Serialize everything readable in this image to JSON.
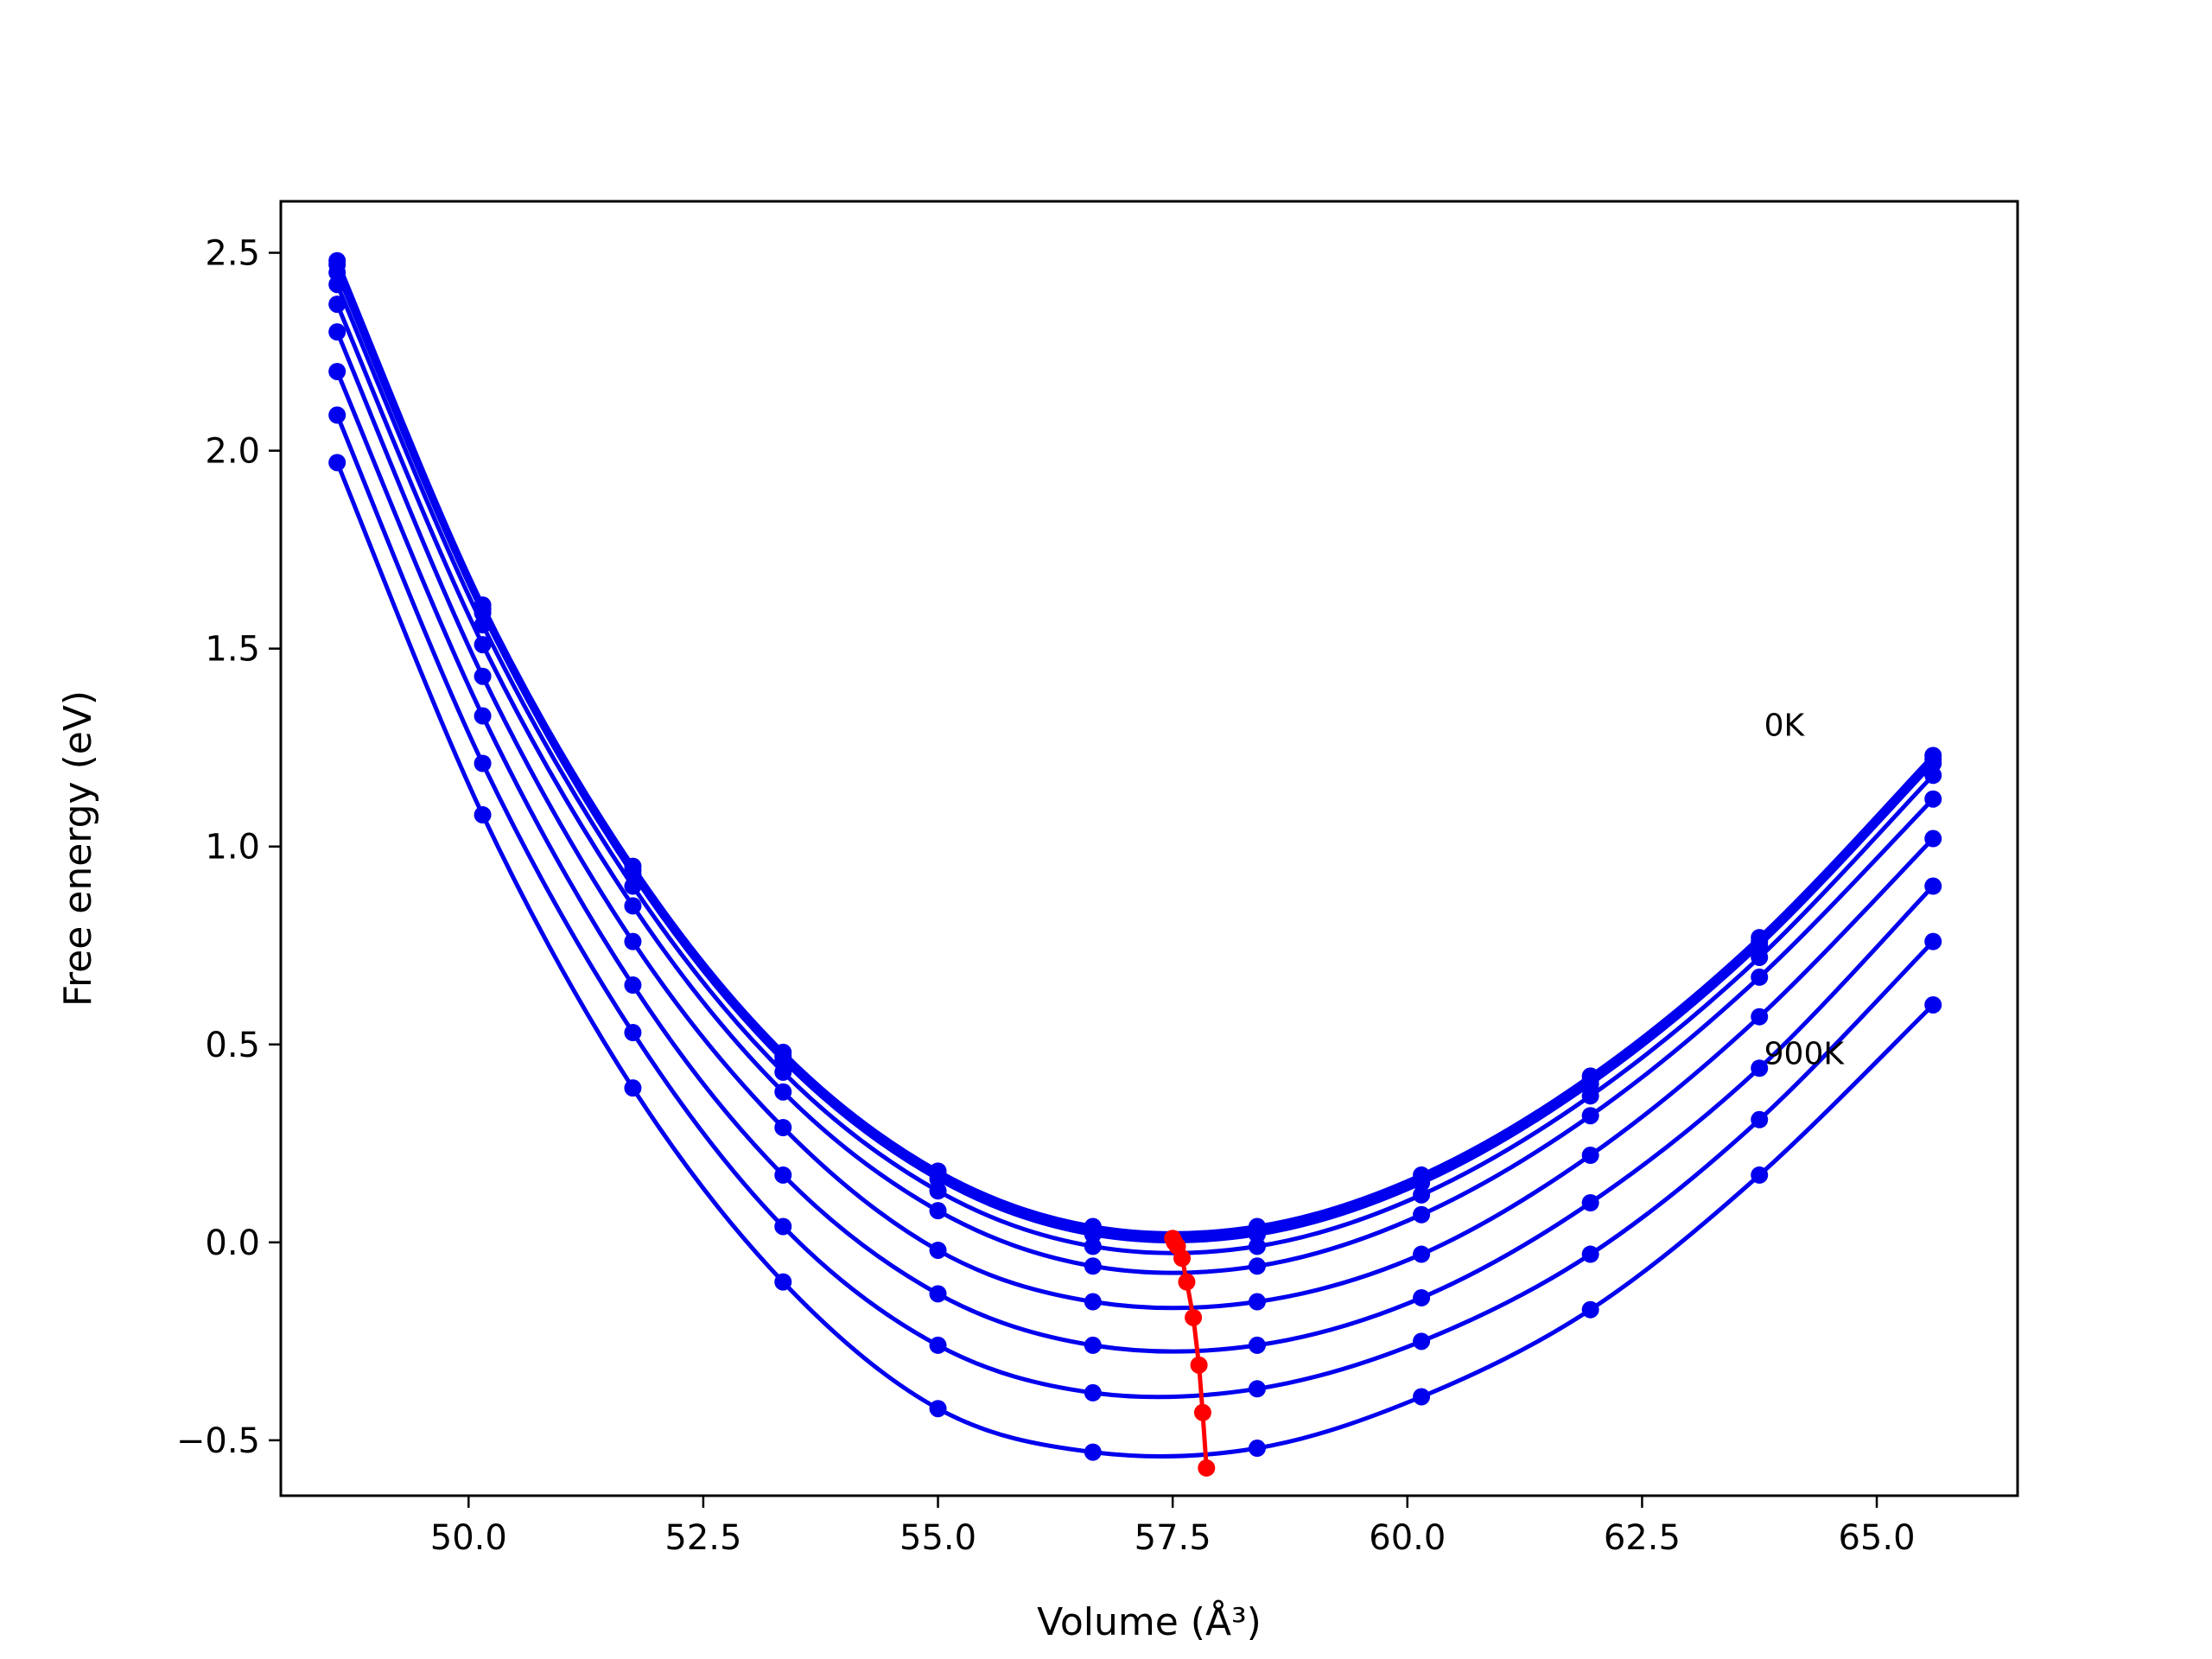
{
  "chart_data": {
    "type": "line",
    "xlabel": "Volume (Å³)",
    "ylabel": "Free energy (eV)",
    "xlim": [
      48.0,
      66.5
    ],
    "ylim": [
      -0.64,
      2.63
    ],
    "xticks": [
      50.0,
      52.5,
      55.0,
      57.5,
      60.0,
      62.5,
      65.0
    ],
    "xtick_labels": [
      "50.0",
      "52.5",
      "55.0",
      "57.5",
      "60.0",
      "62.5",
      "65.0"
    ],
    "yticks": [
      -0.5,
      0.0,
      0.5,
      1.0,
      1.5,
      2.0,
      2.5
    ],
    "ytick_labels": [
      "−0.5",
      "0.0",
      "0.5",
      "1.0",
      "1.5",
      "2.0",
      "2.5"
    ],
    "grid": false,
    "legend": "none",
    "colors": {
      "curves": "#0000ee",
      "minima": "#ff0000"
    },
    "x": [
      48.6,
      50.15,
      51.75,
      53.35,
      55.0,
      56.65,
      58.4,
      60.15,
      61.95,
      63.75,
      65.6
    ],
    "series": [
      {
        "values": [
          2.48,
          1.61,
          0.95,
          0.48,
          0.18,
          0.04,
          0.04,
          0.17,
          0.42,
          0.77,
          1.23
        ]
      },
      {
        "values": [
          2.47,
          1.6,
          0.94,
          0.47,
          0.17,
          0.03,
          0.03,
          0.16,
          0.41,
          0.76,
          1.22
        ]
      },
      {
        "values": [
          2.45,
          1.59,
          0.93,
          0.46,
          0.16,
          0.02,
          0.02,
          0.15,
          0.4,
          0.75,
          1.21
        ]
      },
      {
        "values": [
          2.42,
          1.56,
          0.9,
          0.43,
          0.13,
          -0.01,
          -0.01,
          0.12,
          0.37,
          0.72,
          1.18
        ]
      },
      {
        "values": [
          2.37,
          1.51,
          0.85,
          0.38,
          0.08,
          -0.06,
          -0.06,
          0.07,
          0.32,
          0.67,
          1.12
        ]
      },
      {
        "values": [
          2.3,
          1.43,
          0.76,
          0.29,
          -0.02,
          -0.15,
          -0.15,
          -0.03,
          0.22,
          0.57,
          1.02
        ]
      },
      {
        "values": [
          2.2,
          1.33,
          0.65,
          0.17,
          -0.13,
          -0.26,
          -0.26,
          -0.14,
          0.1,
          0.44,
          0.9
        ]
      },
      {
        "values": [
          2.09,
          1.21,
          0.53,
          0.04,
          -0.26,
          -0.38,
          -0.37,
          -0.25,
          -0.03,
          0.31,
          0.76
        ]
      },
      {
        "values": [
          1.97,
          1.08,
          0.39,
          -0.1,
          -0.42,
          -0.53,
          -0.52,
          -0.39,
          -0.17,
          0.17,
          0.6
        ]
      }
    ],
    "minima": {
      "x": [
        57.5,
        57.52,
        57.55,
        57.6,
        57.65,
        57.72,
        57.78,
        57.82,
        57.86
      ],
      "y": [
        0.01,
        0.0,
        -0.01,
        -0.04,
        -0.1,
        -0.19,
        -0.31,
        -0.43,
        -0.57
      ]
    },
    "annotations": [
      {
        "text": "0K",
        "x": 63.8,
        "y": 1.28
      },
      {
        "text": "900K",
        "x": 63.8,
        "y": 0.45
      }
    ]
  }
}
